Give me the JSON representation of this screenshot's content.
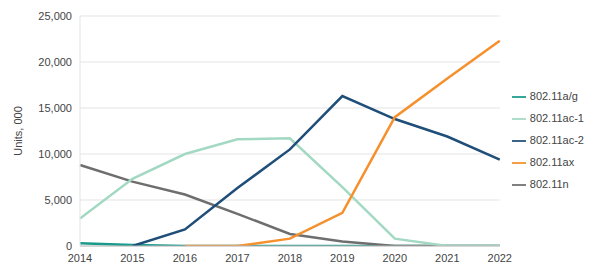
{
  "chart_data": {
    "type": "line",
    "y_label": "Units, 000",
    "categories": [
      "2014",
      "2015",
      "2016",
      "2017",
      "2018",
      "2019",
      "2020",
      "2021",
      "2022"
    ],
    "series": [
      {
        "name": "802.11a/g",
        "color": "#1a9a8a",
        "values": [
          300,
          100,
          0,
          0,
          0,
          0,
          0,
          0,
          0
        ]
      },
      {
        "name": "802.11n",
        "color": "#6e6e6e",
        "values": [
          8800,
          7000,
          5600,
          3500,
          1300,
          500,
          0,
          0,
          0
        ]
      },
      {
        "name": "802.11ac-1",
        "color": "#a3d9c3",
        "values": [
          3000,
          7300,
          10000,
          11600,
          11700,
          6400,
          800,
          0,
          0
        ]
      },
      {
        "name": "802.11ac-2",
        "color": "#1f4e79",
        "values": [
          null,
          0,
          1800,
          6300,
          10500,
          16300,
          13800,
          11900,
          9400
        ]
      },
      {
        "name": "802.11ax",
        "color": "#f5902c",
        "values": [
          null,
          null,
          0,
          0,
          800,
          3600,
          14000,
          18200,
          22300
        ]
      }
    ],
    "ylim": [
      0,
      25000
    ],
    "yticks": [
      0,
      {
        "value": 5000,
        "label": "5,000"
      },
      {
        "value": 10000,
        "label": "10,000"
      },
      {
        "value": 15000,
        "label": "15,000"
      },
      {
        "value": 20000,
        "label": "20,000"
      },
      {
        "value": 25000,
        "label": "25,000"
      }
    ],
    "grid": true,
    "legend": "right"
  }
}
